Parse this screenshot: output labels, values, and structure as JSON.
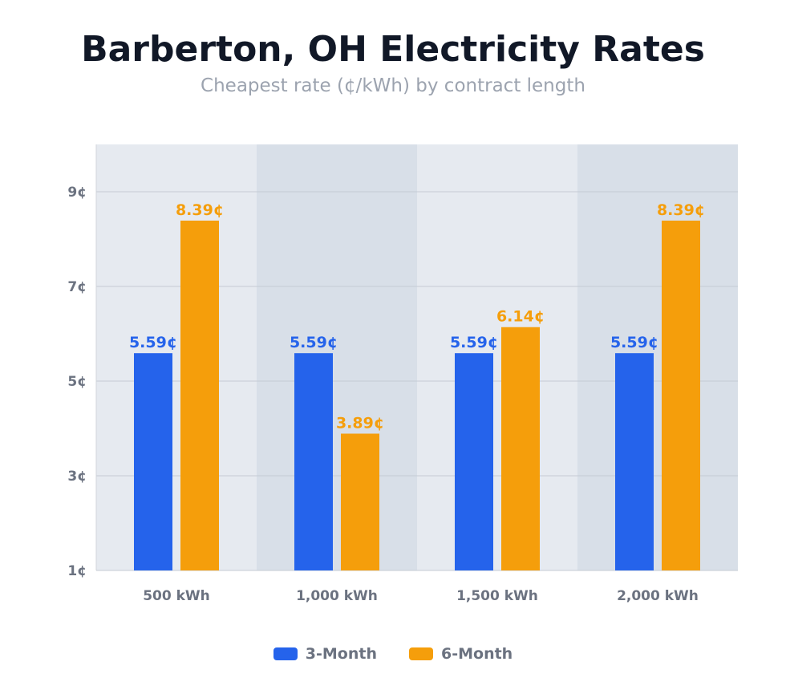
{
  "chart_data": {
    "type": "bar",
    "title": "Barberton, OH Electricity Rates",
    "subtitle": "Cheapest rate (¢/kWh) by contract length",
    "categories": [
      "500 kWh",
      "1,000 kWh",
      "1,500 kWh",
      "2,000 kWh"
    ],
    "series": [
      {
        "name": "3-Month",
        "color": "#2563eb",
        "values": [
          5.59,
          5.59,
          5.59,
          5.59
        ],
        "labels": [
          "5.59¢",
          "5.59¢",
          "5.59¢",
          "5.59¢"
        ]
      },
      {
        "name": "6-Month",
        "color": "#f59e0b",
        "values": [
          8.39,
          3.89,
          6.14,
          8.39
        ],
        "labels": [
          "8.39¢",
          "3.89¢",
          "6.14¢",
          "8.39¢"
        ]
      }
    ],
    "ylim": [
      1,
      10
    ],
    "yticks": [
      1,
      3,
      5,
      7,
      9
    ],
    "ytick_labels": [
      "1¢",
      "3¢",
      "5¢",
      "7¢",
      "9¢"
    ],
    "grid": true,
    "legend": "bottom",
    "band_colors": [
      "#e6eaf0",
      "#d8dfe8"
    ]
  }
}
